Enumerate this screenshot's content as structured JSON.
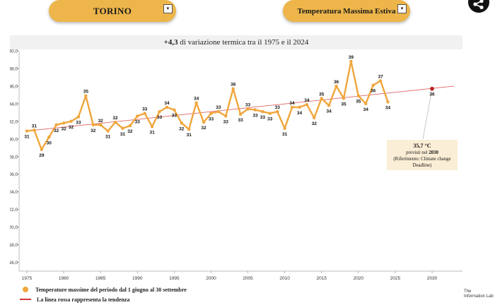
{
  "controls": {
    "city": "TORINO",
    "metric": "Temperatura Massima Estiva",
    "arrow": "▾"
  },
  "header": {
    "title_prefix": "+4,3",
    "title_rest": " di variazione termica tra il 1975 e il 2024"
  },
  "icons": {
    "share": "share-icon"
  },
  "brand": {
    "small": "The",
    "name": "Information Lab"
  },
  "legend": {
    "dot_label": "Temperature massime del periodo dal 1 giugno al 30 settembre",
    "line_label": "La linea rossa rappresenta la tendenza"
  },
  "annotation": {
    "value": "35,7 °C",
    "line1_prefix": "previsti nel ",
    "line1_year": "2030",
    "line2": "(Riferimento: Climate change",
    "line3": "Deadline)"
  },
  "colors": {
    "series": "#f0a63c",
    "trend": "#e06262",
    "forecast": "#b71c1c",
    "dropdown": "#edb54a",
    "annotation_bg": "#fbeed6"
  },
  "chart_data": {
    "type": "line",
    "title": "+4,3 di variazione termica tra il 1975 e il 2024",
    "xlabel": "",
    "ylabel": "",
    "xlim": [
      1975,
      2033
    ],
    "ylim": [
      15,
      40
    ],
    "x_ticks": [
      1975,
      1980,
      1985,
      1990,
      1995,
      2000,
      2005,
      2010,
      2015,
      2020,
      2025,
      2030
    ],
    "y_ticks": [
      16.0,
      18.0,
      20.0,
      22.0,
      24.0,
      26.0,
      28.0,
      30.0,
      32.0,
      34.0,
      36.0,
      38.0,
      40.0
    ],
    "grid": false,
    "series": [
      {
        "name": "Temperature massime del periodo dal 1 giugno al 30 settembre",
        "x": [
          1975,
          1976,
          1977,
          1978,
          1979,
          1980,
          1981,
          1982,
          1983,
          1984,
          1985,
          1986,
          1987,
          1988,
          1989,
          1990,
          1991,
          1992,
          1993,
          1994,
          1995,
          1996,
          1997,
          1998,
          1999,
          2000,
          2001,
          2002,
          2003,
          2004,
          2005,
          2006,
          2007,
          2008,
          2009,
          2010,
          2011,
          2012,
          2013,
          2014,
          2015,
          2016,
          2017,
          2018,
          2019,
          2020,
          2021,
          2022,
          2023,
          2024
        ],
        "y": [
          30.9,
          31.0,
          28.8,
          30.2,
          31.6,
          31.8,
          32.0,
          32.5,
          34.9,
          31.6,
          31.6,
          30.9,
          31.9,
          31.2,
          31.5,
          32.6,
          32.9,
          31.4,
          33.1,
          33.6,
          33.3,
          31.8,
          31.1,
          34.1,
          31.9,
          32.9,
          33.1,
          32.6,
          35.7,
          32.8,
          33.4,
          33.3,
          33.1,
          32.9,
          33.1,
          31.2,
          33.6,
          33.6,
          33.9,
          32.4,
          34.6,
          33.8,
          36.0,
          34.6,
          38.8,
          34.9,
          34.0,
          36.1,
          36.6,
          34.2
        ],
        "data_labels": [
          "31",
          "31",
          "29",
          "30",
          "32",
          "32",
          "32",
          "33",
          "35",
          "32",
          "32",
          "31",
          "32",
          "31",
          "32",
          "33",
          "33",
          "31",
          "33",
          "34",
          "33",
          "32",
          "31",
          "34",
          "32",
          "33",
          "33",
          "33",
          "36",
          "33",
          "33",
          "33",
          "33",
          "33",
          "33",
          "31",
          "34",
          "34",
          "34",
          "32",
          "35",
          "34",
          "36",
          "35",
          "39",
          "35",
          "34",
          "36",
          "37",
          "34"
        ]
      }
    ],
    "trend": {
      "label": "La linea rossa rappresenta la tendenza",
      "x": [
        1975,
        2033
      ],
      "y": [
        30.9,
        36.0
      ]
    },
    "forecast": {
      "x": 2030,
      "y": 35.7,
      "label": "36"
    }
  }
}
